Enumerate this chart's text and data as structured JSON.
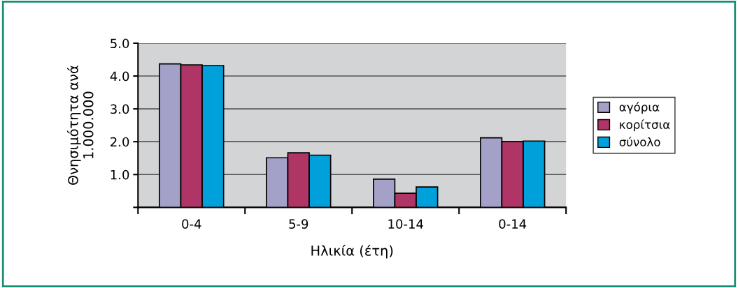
{
  "chart_data": {
    "type": "bar",
    "xlabel": "Ηλικία (έτη)",
    "ylabel": "Θνησιμότητα ανά\n1.000.000",
    "categories": [
      "0-4",
      "5-9",
      "10-14",
      "0-14"
    ],
    "series": [
      {
        "name": "αγόρια",
        "color": "#a3a1c8",
        "values": [
          4.37,
          1.51,
          0.86,
          2.12
        ]
      },
      {
        "name": "κορίτσια",
        "color": "#ae3565",
        "values": [
          4.34,
          1.66,
          0.43,
          2.0
        ]
      },
      {
        "name": "σύνολο",
        "color": "#00a0da",
        "values": [
          4.32,
          1.59,
          0.62,
          2.02
        ]
      }
    ],
    "ylim": [
      0,
      5
    ],
    "yticks": [
      {
        "value": 0,
        "label": null
      },
      {
        "value": 1,
        "label": "1.0"
      },
      {
        "value": 2,
        "label": "2.0"
      },
      {
        "value": 3,
        "label": "3.0"
      },
      {
        "value": 4,
        "label": "4.0"
      },
      {
        "value": 5,
        "label": "5.0"
      }
    ],
    "grid": "y",
    "legend": "right"
  }
}
